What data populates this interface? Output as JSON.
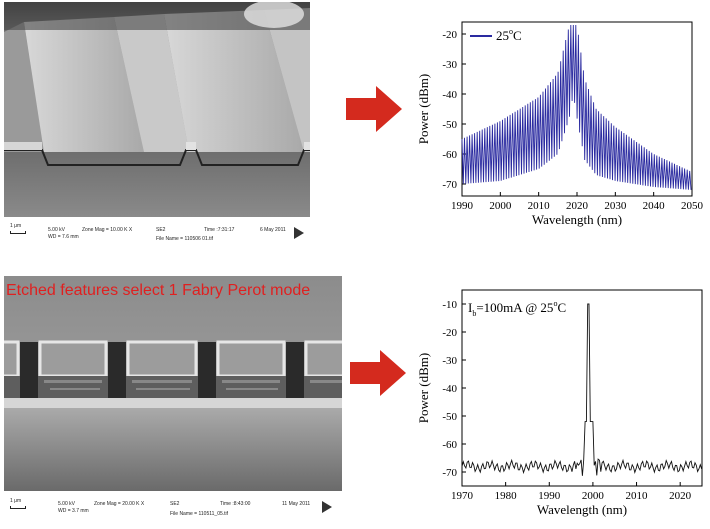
{
  "sem_top": {
    "scale": "1 μm",
    "line1": [
      "5.00 kV",
      "Zone Mag = 10.00 K X",
      "SE2",
      "Time :7:31:17",
      "6 May 2011"
    ],
    "line2": [
      "WD = 7.6 mm",
      "File Name = 110506 01.tif"
    ]
  },
  "sem_bottom": {
    "overlay": "Etched features select 1 Fabry Perot mode",
    "scale": "1 μm",
    "line1": [
      "5.00 kV",
      "Zone Mag = 20.00 K X",
      "SE2",
      "Time :8:43:00",
      "11 May 2011"
    ],
    "line2": [
      "WD = 3.7 mm",
      "File Name = 110511_05.tif"
    ]
  },
  "arrow_color": "#d42a1e",
  "chart_data": [
    {
      "type": "line",
      "xlabel": "Wavelength (nm)",
      "ylabel": "Power (dBm)",
      "xlim": [
        1990,
        2050
      ],
      "ylim": [
        -74,
        -16
      ],
      "xticks": [
        1990,
        2000,
        2010,
        2020,
        2030,
        2040,
        2050
      ],
      "yticks": [
        -20,
        -30,
        -40,
        -50,
        -60,
        -70
      ],
      "legend": "25°C",
      "legend_main": "25",
      "legend_sup": "o",
      "legend_tail": "C",
      "color": "#2a2aa0",
      "description_points": {
        "x": [
          1990,
          2000,
          2010,
          2015,
          2018,
          2019,
          2020,
          2022,
          2025,
          2030,
          2040,
          2050
        ],
        "y_upper": [
          -55,
          -49,
          -41,
          -33,
          -17,
          -17,
          -17,
          -35,
          -45,
          -51,
          -60,
          -66
        ],
        "y_lower": [
          -70,
          -69,
          -65,
          -60,
          -48,
          -40,
          -48,
          -62,
          -67,
          -69,
          -71,
          -72
        ]
      }
    },
    {
      "type": "line",
      "xlabel": "Wavelength (nm)",
      "ylabel": "Power (dBm)",
      "xlim": [
        1970,
        2025
      ],
      "ylim": [
        -75,
        -5
      ],
      "xticks": [
        1970,
        1980,
        1990,
        2000,
        2010,
        2020
      ],
      "yticks": [
        -10,
        -20,
        -30,
        -40,
        -50,
        -60,
        -70
      ],
      "annotation": "Ib=100mA @ 25°C",
      "ann_i": "I",
      "ann_sub": "b",
      "ann_mid": "=100mA @ 25",
      "ann_sup": "o",
      "ann_tail": "C",
      "color": "#111111",
      "peak": {
        "x": 1999,
        "y": -10
      },
      "baseline": -68
    }
  ]
}
